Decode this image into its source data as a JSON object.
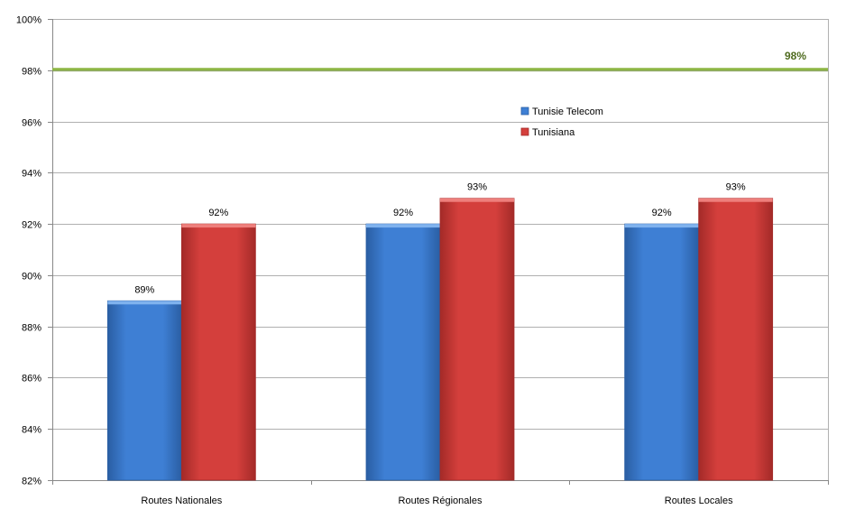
{
  "chart_data": {
    "type": "bar",
    "categories": [
      "Routes Nationales",
      "Routes Régionales",
      "Routes Locales"
    ],
    "series": [
      {
        "name": "Tunisie Telecom",
        "values": [
          89,
          92,
          92
        ],
        "labels": [
          "89%",
          "92%",
          "92%"
        ]
      },
      {
        "name": "Tunisiana",
        "values": [
          92,
          93,
          93
        ],
        "labels": [
          "92%",
          "93%",
          "93%"
        ]
      }
    ],
    "ylim": [
      82,
      100
    ],
    "y_ticks": [
      82,
      84,
      86,
      88,
      90,
      92,
      94,
      96,
      98,
      100
    ],
    "y_tick_labels": [
      "82%",
      "84%",
      "86%",
      "88%",
      "90%",
      "92%",
      "94%",
      "96%",
      "98%",
      "100%"
    ],
    "target_line": {
      "value": 98,
      "label": "98%"
    },
    "grid": true,
    "legend": "inside-top-center",
    "title": "",
    "xlabel": "",
    "ylabel": ""
  },
  "colors": {
    "series": [
      "#3e7fd4",
      "#d43f3c"
    ],
    "series_dark": [
      "#2a5ea3",
      "#a32a28"
    ],
    "series_top": [
      "#7fb2ee",
      "#ee7f7c"
    ],
    "target": "#8db645",
    "target_label": "#4f6b1f",
    "grid": "#b0b0b0",
    "axis": "#888888"
  }
}
